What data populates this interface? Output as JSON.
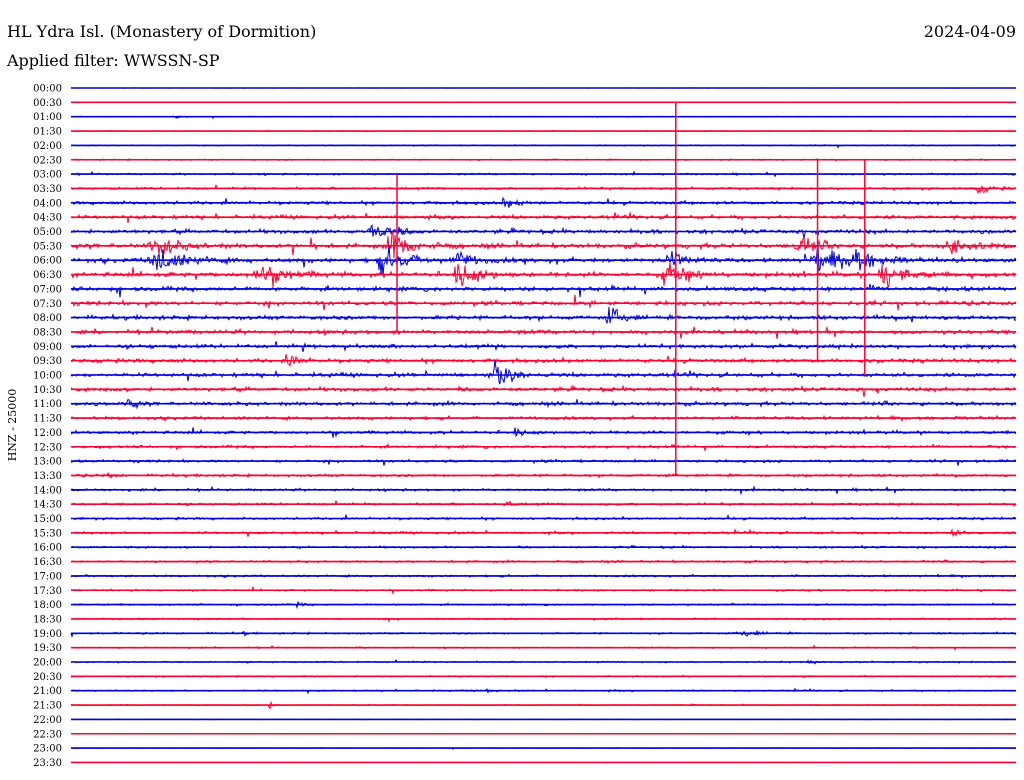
{
  "header": {
    "station": "HL Ydra Isl. (Monastery of Dormition)",
    "date": "2024-04-09",
    "filter": "Applied filter: WWSSN-SP"
  },
  "colors": {
    "blue": "#0000dd",
    "red": "#ff0033",
    "text": "#000000"
  },
  "chart_data": {
    "type": "line",
    "title": "HL Ydra Isl. (Monastery of Dormition)",
    "ylabel": "HNZ - 25000",
    "xlabel": "",
    "grid": false,
    "rows": [
      "00:00",
      "00:30",
      "01:00",
      "01:30",
      "02:00",
      "02:30",
      "03:00",
      "03:30",
      "04:00",
      "04:30",
      "05:00",
      "05:30",
      "06:00",
      "06:30",
      "07:00",
      "07:30",
      "08:00",
      "08:30",
      "09:00",
      "09:30",
      "10:00",
      "10:30",
      "11:00",
      "11:30",
      "12:00",
      "12:30",
      "13:00",
      "13:30",
      "14:00",
      "14:30",
      "15:00",
      "15:30",
      "16:00",
      "16:30",
      "17:00",
      "17:30",
      "18:00",
      "18:30",
      "19:00",
      "19:30",
      "20:00",
      "20:30",
      "21:00",
      "21:30",
      "22:00",
      "22:30",
      "23:00",
      "23:30"
    ],
    "row_colors": [
      "blue",
      "red"
    ],
    "noise_level": [
      0.2,
      0.4,
      0.6,
      0.7,
      0.8,
      1.0,
      1.2,
      1.6,
      2.2,
      2.4,
      2.6,
      3.0,
      3.0,
      3.0,
      3.0,
      2.8,
      2.8,
      2.8,
      2.6,
      2.6,
      2.6,
      2.6,
      2.4,
      2.2,
      2.0,
      2.0,
      1.8,
      1.8,
      1.6,
      1.6,
      1.6,
      1.6,
      1.4,
      1.4,
      1.4,
      1.2,
      1.2,
      1.2,
      1.2,
      1.0,
      1.0,
      1.0,
      1.0,
      0.8,
      0.3,
      0.3,
      0.4,
      0.3
    ],
    "events": [
      {
        "row": 2,
        "pos": 0.11,
        "amp": 3,
        "w": 0.01
      },
      {
        "row": 11,
        "pos": 0.09,
        "amp": 14,
        "w": 0.03
      },
      {
        "row": 12,
        "pos": 0.09,
        "amp": 18,
        "w": 0.035
      },
      {
        "row": 13,
        "pos": 0.2,
        "amp": 14,
        "w": 0.03
      },
      {
        "row": 10,
        "pos": 0.32,
        "amp": 16,
        "w": 0.02
      },
      {
        "row": 11,
        "pos": 0.34,
        "amp": 22,
        "w": 0.025
      },
      {
        "row": 12,
        "pos": 0.33,
        "amp": 20,
        "w": 0.03
      },
      {
        "row": 13,
        "pos": 0.41,
        "amp": 16,
        "w": 0.025
      },
      {
        "row": 12,
        "pos": 0.41,
        "amp": 14,
        "w": 0.02
      },
      {
        "row": 8,
        "pos": 0.46,
        "amp": 8,
        "w": 0.015
      },
      {
        "row": 16,
        "pos": 0.57,
        "amp": 16,
        "w": 0.015
      },
      {
        "row": 13,
        "pos": 0.63,
        "amp": 22,
        "w": 0.02
      },
      {
        "row": 12,
        "pos": 0.63,
        "amp": 16,
        "w": 0.02
      },
      {
        "row": 11,
        "pos": 0.77,
        "amp": 14,
        "w": 0.02
      },
      {
        "row": 12,
        "pos": 0.79,
        "amp": 18,
        "w": 0.03
      },
      {
        "row": 12,
        "pos": 0.83,
        "amp": 14,
        "w": 0.025
      },
      {
        "row": 13,
        "pos": 0.86,
        "amp": 18,
        "w": 0.025
      },
      {
        "row": 11,
        "pos": 0.93,
        "amp": 12,
        "w": 0.03
      },
      {
        "row": 7,
        "pos": 0.96,
        "amp": 8,
        "w": 0.015
      },
      {
        "row": 19,
        "pos": 0.23,
        "amp": 14,
        "w": 0.01
      },
      {
        "row": 20,
        "pos": 0.45,
        "amp": 18,
        "w": 0.02
      },
      {
        "row": 22,
        "pos": 0.06,
        "amp": 9,
        "w": 0.01
      },
      {
        "row": 24,
        "pos": 0.47,
        "amp": 5,
        "w": 0.01
      },
      {
        "row": 27,
        "pos": 0.04,
        "amp": 6,
        "w": 0.006
      },
      {
        "row": 29,
        "pos": 0.46,
        "amp": 6,
        "w": 0.008
      },
      {
        "row": 31,
        "pos": 0.93,
        "amp": 6,
        "w": 0.012
      },
      {
        "row": 36,
        "pos": 0.24,
        "amp": 5,
        "w": 0.006
      },
      {
        "row": 38,
        "pos": 0.18,
        "amp": 6,
        "w": 0.006
      },
      {
        "row": 38,
        "pos": 0.71,
        "amp": 5,
        "w": 0.02
      },
      {
        "row": 40,
        "pos": 0.78,
        "amp": 5,
        "w": 0.008
      },
      {
        "row": 42,
        "pos": 0.44,
        "amp": 5,
        "w": 0.006
      },
      {
        "row": 43,
        "pos": 0.21,
        "amp": 5,
        "w": 0.006
      }
    ],
    "spikes": [
      {
        "row": 13,
        "pos": 0.64,
        "top_row": 1,
        "bottom_row": 27
      },
      {
        "row": 11,
        "pos": 0.79,
        "top_row": 5,
        "bottom_row": 19
      },
      {
        "row": 13,
        "pos": 0.84,
        "top_row": 5,
        "bottom_row": 20
      },
      {
        "row": 11,
        "pos": 0.345,
        "top_row": 6,
        "bottom_row": 17
      }
    ]
  }
}
